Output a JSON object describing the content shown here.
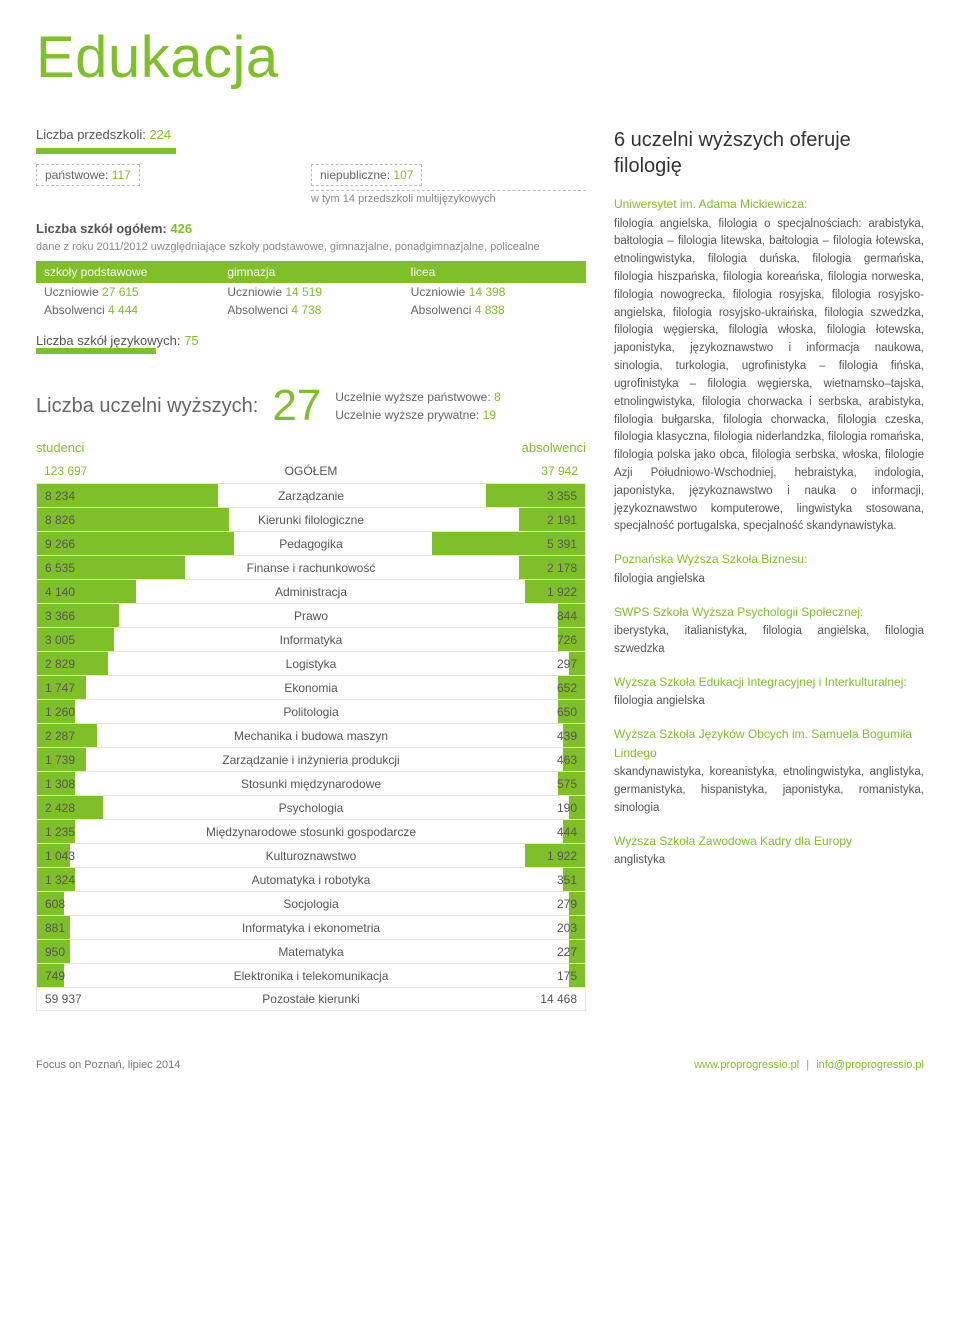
{
  "title": "Edukacja",
  "preschool": {
    "label": "Liczba przedszkoli:",
    "value": "224"
  },
  "state": {
    "label": "państwowe:",
    "value": "117"
  },
  "nonpublic": {
    "label": "niepubliczne:",
    "value": "107"
  },
  "nonpublic_sub": "w tym 14 przedszkoli multijęzykowych",
  "schools_total": {
    "label": "Liczba szkół ogółem:",
    "value": "426"
  },
  "schools_note": "dane z roku 2011/2012 uwzględniające szkoły podstawowe, gimnazjalne, ponadgimnazjalne, policealne",
  "school_types": {
    "headers": [
      "szkoły podstawowe",
      "gimnazja",
      "licea"
    ],
    "row1_label": "Uczniowie",
    "row1": [
      "27 615",
      "14 519",
      "14 398"
    ],
    "row2_label": "Absolwenci",
    "row2": [
      "4 444",
      "4 738",
      "4 838"
    ]
  },
  "lang_schools": {
    "label": "Liczba szkół językowych:",
    "value": "75"
  },
  "uni": {
    "label": "Liczba uczelni wyższych:",
    "value": "27",
    "sub1": "Uczelnie wyższe państwowe:",
    "sub1v": "8",
    "sub2": "Uczelnie wyższe prywatne:",
    "sub2v": "19"
  },
  "columns": {
    "left": "studenci",
    "center": "OGÓŁEM",
    "right": "absolwenci",
    "total_left": "123 697",
    "total_right": "37 942"
  },
  "rows": [
    {
      "l": "8 234",
      "c": "Zarządzanie",
      "r": "3 355",
      "bl": 33,
      "br": 18
    },
    {
      "l": "8 826",
      "c": "Kierunki filologiczne",
      "r": "2 191",
      "bl": 35,
      "br": 12
    },
    {
      "l": "9 266",
      "c": "Pedagogika",
      "r": "5 391",
      "bl": 36,
      "br": 28
    },
    {
      "l": "6 535",
      "c": "Finanse i rachunkowość",
      "r": "2 178",
      "bl": 27,
      "br": 12
    },
    {
      "l": "4 140",
      "c": "Administracja",
      "r": "1 922",
      "bl": 18,
      "br": 11
    },
    {
      "l": "3 366",
      "c": "Prawo",
      "r": "844",
      "bl": 15,
      "br": 5
    },
    {
      "l": "3 005",
      "c": "Informatyka",
      "r": "726",
      "bl": 14,
      "br": 5
    },
    {
      "l": "2 829",
      "c": "Logistyka",
      "r": "297",
      "bl": 13,
      "br": 3
    },
    {
      "l": "1 747",
      "c": "Ekonomia",
      "r": "652",
      "bl": 9,
      "br": 5
    },
    {
      "l": "1 260",
      "c": "Politologia",
      "r": "650",
      "bl": 7,
      "br": 5
    },
    {
      "l": "2 287",
      "c": "Mechanika i budowa maszyn",
      "r": "439",
      "bl": 11,
      "br": 4
    },
    {
      "l": "1 739",
      "c": "Zarządzanie i inżynieria produkcji",
      "r": "463",
      "bl": 9,
      "br": 4
    },
    {
      "l": "1 308",
      "c": "Stosunki międzynarodowe",
      "r": "575",
      "bl": 7,
      "br": 5
    },
    {
      "l": "2 428",
      "c": "Psychologia",
      "r": "190",
      "bl": 12,
      "br": 3
    },
    {
      "l": "1 235",
      "c": "Międzynarodowe stosunki gospodarcze",
      "r": "444",
      "bl": 7,
      "br": 4
    },
    {
      "l": "1 043",
      "c": "Kulturoznawstwo",
      "r": "1 922",
      "bl": 6,
      "br": 11
    },
    {
      "l": "1 324",
      "c": "Automatyka i robotyka",
      "r": "351",
      "bl": 7,
      "br": 4
    },
    {
      "l": "608",
      "c": "Socjologia",
      "r": "279",
      "bl": 5,
      "br": 3
    },
    {
      "l": "881",
      "c": "Informatyka i ekonometria",
      "r": "203",
      "bl": 6,
      "br": 3
    },
    {
      "l": "950",
      "c": "Matematyka",
      "r": "227",
      "bl": 6,
      "br": 3
    },
    {
      "l": "749",
      "c": "Elektronika i telekomunikacja",
      "r": "175",
      "bl": 5,
      "br": 3
    },
    {
      "l": "59 937",
      "c": "Pozostałe kierunki",
      "r": "14 468",
      "bl": 0,
      "br": 0
    }
  ],
  "right": {
    "title": "6 uczelni wyższych oferuje filologię",
    "items": [
      {
        "head": "Uniwersytet im. Adama Mickiewicza:",
        "body": "filologia angielska, filologia o specjalnościach: arabistyka, bałtologia – filologia litewska, bałtologia – filologia łotewska, etnolingwistyka, filologia duńska, filologia germańska, filologia hiszpańska, filologia koreańska, filologia norweska, filologia nowogrecka, filologia rosyjska, filologia rosyjsko-angielska, filologia rosyjsko-ukraińska, filologia szwedzka, filologia węgierska, filologia włoska, filologia łotewska, japonistyka, językoznawstwo i informacja naukowa, sinologia, turkologia, ugrofinistyka – filologia fińska, ugrofinistyka – filologia węgierska, wietnamsko–tajska, etnolingwistyka, filologia chorwacka i serbska, arabistyka, filologia bułgarska, filologia chorwacka, filologia czeska, filologia klasyczna, filologia niderlandzka, filologia romańska, filologia polska jako obca, filologia serbska, włoska, filologie Azji Południowo-Wschodniej, hebraistyka, indologia, japonistyka, językoznawstwo i nauka o informacji, językoznawstwo komputerowe, lingwistyka stosowana, specjalność portugalska, specjalność skandynawistyka."
      },
      {
        "head": "Poznańska Wyższa Szkoła Biznesu:",
        "body": "filologia angielska"
      },
      {
        "head": "SWPS Szkoła Wyższa Psychologii Społecznej:",
        "body": "iberystyka, italianistyka, filologia angielska, filologia szwedzka"
      },
      {
        "head": "Wyższa Szkoła Edukacji Integracyjnej i Interkulturalnej:",
        "body": "filologia angielska"
      },
      {
        "head": "Wyższa Szkoła Języków Obcych im. Samuela Bogumiła Lindego",
        "body": "skandynawistyka, koreanistyka, etnolingwistyka, anglistyka, germanistyka, hispanistyka, japonistyka, romanistyka, sinologia"
      },
      {
        "head": "Wyższa Szkoła Zawodowa Kadry dla Europy",
        "body": "anglistyka"
      }
    ]
  },
  "footer": {
    "left": "Focus on Poznań, lipiec 2014",
    "url": "www.proprogressio.pl",
    "email": "info@proprogressio.pl"
  }
}
